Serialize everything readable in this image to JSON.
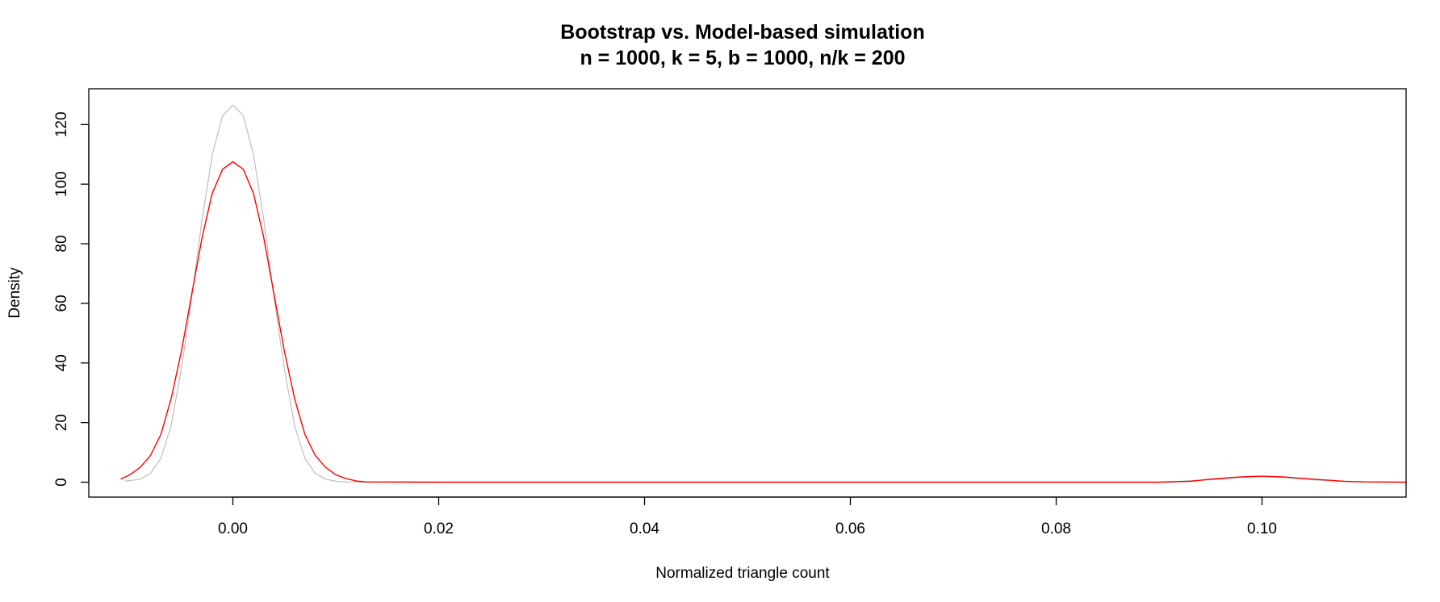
{
  "chart_data": {
    "type": "line",
    "title": "Bootstrap vs. Model-based simulation",
    "subtitle": "n = 1000, k = 5, b = 1000, n/k = 200",
    "xlabel": "Normalized triangle count",
    "ylabel": "Density",
    "xlim": [
      -0.014,
      0.114
    ],
    "ylim": [
      -5,
      132
    ],
    "x_ticks": [
      0.0,
      0.02,
      0.04,
      0.06,
      0.08,
      0.1
    ],
    "x_tick_labels": [
      "0.00",
      "0.02",
      "0.04",
      "0.06",
      "0.08",
      "0.10"
    ],
    "y_ticks": [
      0,
      20,
      40,
      60,
      80,
      100,
      120
    ],
    "y_tick_labels": [
      "0",
      "20",
      "40",
      "60",
      "80",
      "100",
      "120"
    ],
    "grid": false,
    "legend": "none",
    "series": [
      {
        "color": "#bebebe",
        "x": [
          -0.0105,
          -0.009,
          -0.008,
          -0.007,
          -0.006,
          -0.005,
          -0.004,
          -0.003,
          -0.002,
          -0.001,
          0.0,
          0.001,
          0.002,
          0.003,
          0.004,
          0.005,
          0.006,
          0.007,
          0.008,
          0.009,
          0.01,
          0.011,
          0.012,
          0.013,
          0.02,
          0.04,
          0.06,
          0.08,
          0.09,
          0.095,
          0.098,
          0.1,
          0.102,
          0.105,
          0.108,
          0.114
        ],
        "y": [
          0.3,
          1.0,
          3.0,
          8.0,
          19.0,
          38.0,
          62.0,
          88.0,
          110.0,
          123.0,
          126.5,
          123.0,
          110.0,
          88.0,
          62.0,
          38.0,
          19.0,
          8.0,
          3.0,
          1.0,
          0.3,
          0.1,
          0.0,
          0.0,
          0.0,
          0.0,
          0.0,
          0.0,
          0.0,
          0.8,
          1.6,
          1.9,
          1.6,
          0.8,
          0.2,
          0.0
        ]
      },
      {
        "color": "#ff0000",
        "x": [
          -0.0109,
          -0.01,
          -0.009,
          -0.008,
          -0.007,
          -0.006,
          -0.005,
          -0.004,
          -0.003,
          -0.002,
          -0.001,
          0.0,
          0.001,
          0.002,
          0.003,
          0.004,
          0.005,
          0.006,
          0.007,
          0.008,
          0.009,
          0.01,
          0.011,
          0.012,
          0.013,
          0.02,
          0.04,
          0.06,
          0.08,
          0.09,
          0.093,
          0.095,
          0.098,
          0.1,
          0.102,
          0.105,
          0.108,
          0.11,
          0.114
        ],
        "y": [
          1.0,
          2.5,
          5.0,
          9.0,
          16.0,
          28.0,
          44.0,
          63.0,
          82.0,
          97.0,
          105.0,
          107.5,
          105.0,
          97.0,
          82.0,
          63.0,
          44.0,
          28.0,
          16.0,
          9.0,
          5.0,
          2.5,
          1.2,
          0.4,
          0.1,
          0.0,
          0.0,
          0.0,
          0.0,
          0.0,
          0.3,
          1.0,
          1.8,
          2.0,
          1.8,
          1.0,
          0.3,
          0.1,
          0.0
        ]
      }
    ]
  }
}
